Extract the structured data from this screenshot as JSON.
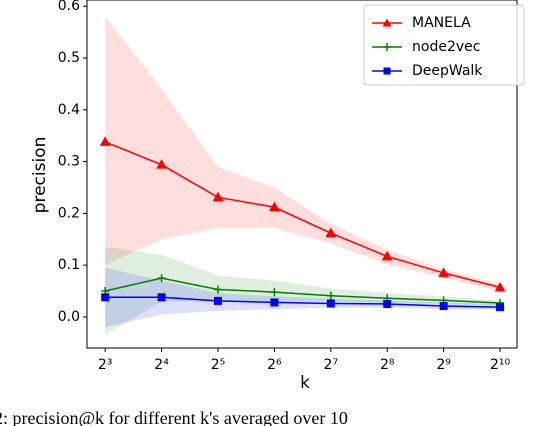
{
  "chart_data": {
    "type": "line",
    "x_label": "k",
    "y_label": "precision",
    "caption": "2: precision@k for different k's averaged over 10",
    "x": [
      8,
      16,
      32,
      64,
      128,
      256,
      512,
      1024
    ],
    "log_x_base": 2,
    "xlim": [
      6.4,
      1261
    ],
    "xticks": [
      {
        "value": 8,
        "label": "2³"
      },
      {
        "value": 16,
        "label": "2⁴"
      },
      {
        "value": 32,
        "label": "2⁵"
      },
      {
        "value": 64,
        "label": "2⁶"
      },
      {
        "value": 128,
        "label": "2⁷"
      },
      {
        "value": 256,
        "label": "2⁸"
      },
      {
        "value": 512,
        "label": "2⁹"
      },
      {
        "value": 1024,
        "label": "2¹⁰"
      }
    ],
    "ylim": [
      -0.06,
      0.612
    ],
    "yticks": [
      {
        "value": 0,
        "label": "0.0"
      },
      0.1,
      0.2,
      0.3,
      0.4,
      0.5,
      0.6
    ],
    "grid": false,
    "legend": "upper right",
    "series": [
      {
        "name": "MANELA",
        "color": "#ff0000",
        "marker": "triangle",
        "values": [
          0.338,
          0.294,
          0.231,
          0.212,
          0.162,
          0.117,
          0.085,
          0.057
        ],
        "upper": [
          0.58,
          0.44,
          0.29,
          0.25,
          0.18,
          0.13,
          0.092,
          0.064
        ],
        "lower": [
          0.1,
          0.15,
          0.172,
          0.172,
          0.142,
          0.102,
          0.076,
          0.05
        ]
      },
      {
        "name": "node2vec",
        "color": "#008000",
        "marker": "plus",
        "values": [
          0.05,
          0.075,
          0.053,
          0.048,
          0.041,
          0.036,
          0.032,
          0.027
        ],
        "upper": [
          0.135,
          0.12,
          0.08,
          0.07,
          0.055,
          0.046,
          0.04,
          0.031
        ],
        "lower": [
          -0.035,
          0.03,
          0.03,
          0.03,
          0.03,
          0.027,
          0.025,
          0.022
        ]
      },
      {
        "name": "DeepWalk",
        "color": "#0000ff",
        "marker": "square",
        "values": [
          0.038,
          0.038,
          0.031,
          0.028,
          0.026,
          0.025,
          0.021,
          0.019
        ],
        "upper": [
          0.095,
          0.07,
          0.046,
          0.04,
          0.035,
          0.032,
          0.028,
          0.025
        ],
        "lower": [
          -0.02,
          0.005,
          0.012,
          0.015,
          0.018,
          0.018,
          0.015,
          0.014
        ]
      }
    ]
  }
}
